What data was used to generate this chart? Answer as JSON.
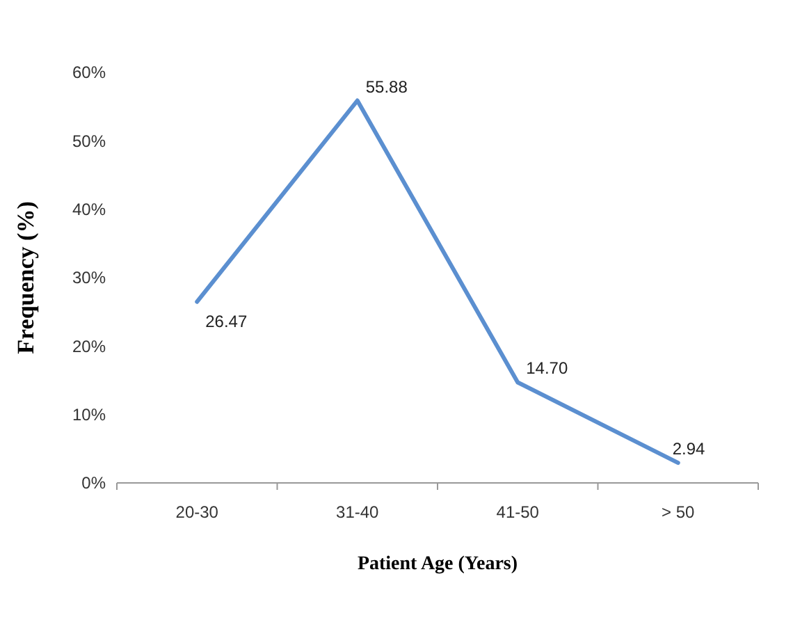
{
  "chart_data": {
    "type": "line",
    "xlabel": "Patient Age (Years)",
    "ylabel": "Frequency (%)",
    "categories": [
      "20-30",
      "31-40",
      "41-50",
      "> 50"
    ],
    "series": [
      {
        "color": "#5b8fd0",
        "values": [
          26.47,
          55.88,
          14.7,
          2.94
        ],
        "value_labels": [
          "26.47",
          "55.88",
          "14.70",
          "2.94"
        ]
      }
    ],
    "ylim": [
      0,
      60
    ],
    "yticks": [
      {
        "value": 0,
        "label": "0%"
      },
      {
        "value": 10,
        "label": "10%"
      },
      {
        "value": 20,
        "label": "20%"
      },
      {
        "value": 30,
        "label": "30%"
      },
      {
        "value": 40,
        "label": "40%"
      },
      {
        "value": 50,
        "label": "50%"
      },
      {
        "value": 60,
        "label": "60%"
      }
    ],
    "grid": false,
    "marker": "none",
    "line_style": "solid"
  }
}
